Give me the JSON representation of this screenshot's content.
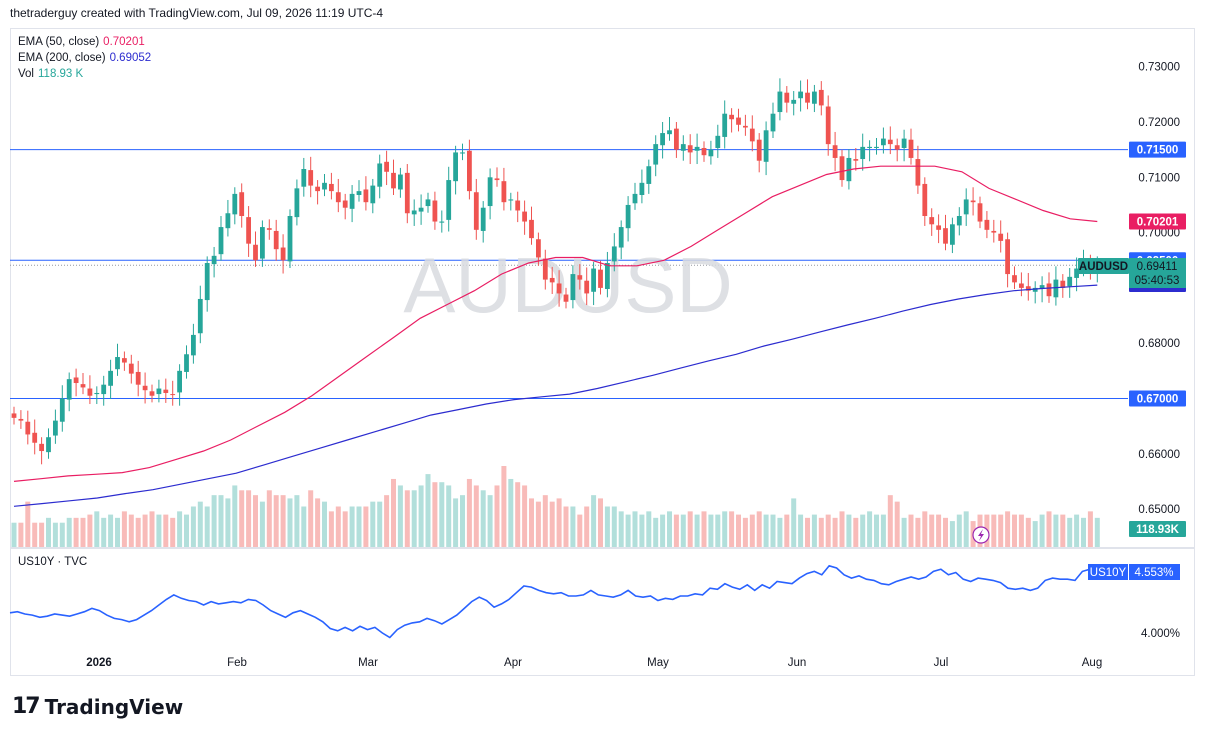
{
  "header": {
    "text": "thetraderguy created with TradingView.com, Jul 09, 2026 11:19 UTC-4"
  },
  "legend": [
    {
      "label": "EMA (50, close)",
      "value": "0.70201",
      "color": "#e91e63"
    },
    {
      "label": "EMA (200, close)",
      "value": "0.69052",
      "color": "#2c2ccf"
    },
    {
      "label": "Vol",
      "value": "118.93 K",
      "color": "#26a69a"
    }
  ],
  "watermark": "AUDUSD",
  "lower_pane": {
    "label": "US10Y · TVC",
    "badge_symbol": "US10Y",
    "badge_value": "4.553%",
    "tick": "4.000%",
    "color": "#2962ff"
  },
  "logo": {
    "mark": "17",
    "brand": "TradingView"
  },
  "colors": {
    "up": "#26a69a",
    "down": "#ef5350",
    "vol_up": "#b2dfdb",
    "vol_down": "#f8bbb9",
    "hline": "#2962ff"
  },
  "chart_data": [
    {
      "type": "candlestick",
      "symbol": "AUDUSD",
      "x_ticks": [
        "2026",
        "Feb",
        "Mar",
        "Apr",
        "May",
        "Jun",
        "Jul",
        "Aug"
      ],
      "y_ticks": [
        "0.73000",
        "0.72000",
        "0.71000",
        "0.70000",
        "0.68000",
        "0.66000",
        "0.65000"
      ],
      "ylim": [
        0.648,
        0.732
      ],
      "horizontal_lines": [
        {
          "value": 0.715,
          "label": "0.71500"
        },
        {
          "value": 0.695,
          "label": "0.69500"
        },
        {
          "value": 0.67,
          "label": "0.67000"
        }
      ],
      "price_labels": {
        "last": "AUDUSD",
        "price": "0.69411",
        "countdown": "05:40:53",
        "ema50": "0.70201",
        "ema200": "0.69052",
        "volume": "118.93K"
      },
      "closes": [
        0.6665,
        0.666,
        0.6635,
        0.662,
        0.6605,
        0.663,
        0.666,
        0.67,
        0.6735,
        0.6728,
        0.672,
        0.6705,
        0.671,
        0.6725,
        0.675,
        0.6775,
        0.6765,
        0.6745,
        0.6725,
        0.6715,
        0.6705,
        0.6718,
        0.671,
        0.6708,
        0.675,
        0.678,
        0.6815,
        0.688,
        0.6945,
        0.6958,
        0.701,
        0.7035,
        0.707,
        0.703,
        0.698,
        0.695,
        0.701,
        0.7005,
        0.697,
        0.695,
        0.703,
        0.708,
        0.7115,
        0.7085,
        0.7075,
        0.709,
        0.7075,
        0.7055,
        0.7045,
        0.707,
        0.7075,
        0.7055,
        0.7085,
        0.7125,
        0.711,
        0.708,
        0.7105,
        0.7035,
        0.704,
        0.7045,
        0.706,
        0.702,
        0.702,
        0.7095,
        0.7145,
        0.7145,
        0.7075,
        0.7005,
        0.7045,
        0.71,
        0.7095,
        0.7055,
        0.706,
        0.704,
        0.702,
        0.699,
        0.6955,
        0.6915,
        0.691,
        0.689,
        0.6875,
        0.6925,
        0.6915,
        0.689,
        0.6935,
        0.69,
        0.6945,
        0.6975,
        0.701,
        0.705,
        0.707,
        0.709,
        0.712,
        0.716,
        0.718,
        0.7185,
        0.715,
        0.716,
        0.7145,
        0.7155,
        0.714,
        0.715,
        0.7175,
        0.7215,
        0.7205,
        0.7195,
        0.719,
        0.7165,
        0.713,
        0.7185,
        0.7215,
        0.7255,
        0.7235,
        0.724,
        0.7255,
        0.7235,
        0.7255,
        0.723,
        0.716,
        0.7135,
        0.7095,
        0.7135,
        0.713,
        0.7155,
        0.7155,
        0.7155,
        0.717,
        0.716,
        0.715,
        0.717,
        0.7135,
        0.7085,
        0.703,
        0.7015,
        0.7005,
        0.698,
        0.7015,
        0.703,
        0.706,
        0.7055,
        0.702,
        0.7005,
        0.7,
        0.6985,
        0.6925,
        0.691,
        0.69,
        0.6895,
        0.69,
        0.6905,
        0.6885,
        0.6915,
        0.69,
        0.692,
        0.6935,
        0.6945,
        0.693,
        0.6941
      ],
      "ema50": [
        0.655,
        0.6555,
        0.656,
        0.6563,
        0.6566,
        0.6575,
        0.659,
        0.6605,
        0.6625,
        0.665,
        0.6675,
        0.6705,
        0.674,
        0.6775,
        0.681,
        0.6845,
        0.687,
        0.6895,
        0.6925,
        0.6945,
        0.6955,
        0.6955,
        0.694,
        0.694,
        0.695,
        0.6975,
        0.7005,
        0.7035,
        0.7065,
        0.7085,
        0.7105,
        0.7115,
        0.712,
        0.712,
        0.712,
        0.711,
        0.708,
        0.706,
        0.704,
        0.7025,
        0.702
      ],
      "ema200": [
        0.6505,
        0.651,
        0.6515,
        0.652,
        0.6528,
        0.6535,
        0.6545,
        0.6555,
        0.6565,
        0.658,
        0.6595,
        0.661,
        0.6625,
        0.664,
        0.6655,
        0.667,
        0.668,
        0.669,
        0.6698,
        0.6703,
        0.6708,
        0.6718,
        0.673,
        0.6742,
        0.6755,
        0.6768,
        0.678,
        0.6795,
        0.6807,
        0.682,
        0.6833,
        0.6845,
        0.6858,
        0.687,
        0.688,
        0.6888,
        0.6895,
        0.6899,
        0.6902,
        0.6905
      ],
      "volumes": [
        35,
        35,
        48,
        35,
        35,
        38,
        35,
        35,
        38,
        38,
        38,
        40,
        42,
        38,
        40,
        38,
        42,
        40,
        38,
        40,
        42,
        40,
        40,
        38,
        42,
        40,
        45,
        48,
        45,
        52,
        52,
        50,
        58,
        55,
        55,
        52,
        48,
        55,
        52,
        52,
        50,
        52,
        45,
        55,
        50,
        48,
        42,
        45,
        42,
        45,
        45,
        45,
        48,
        48,
        52,
        62,
        58,
        55,
        55,
        58,
        65,
        60,
        60,
        58,
        50,
        52,
        62,
        58,
        55,
        52,
        58,
        70,
        62,
        60,
        58,
        50,
        48,
        52,
        48,
        50,
        45,
        45,
        40,
        45,
        52,
        50,
        45,
        45,
        42,
        40,
        42,
        40,
        42,
        38,
        40,
        42,
        40,
        40,
        42,
        40,
        42,
        40,
        40,
        42,
        42,
        40,
        38,
        40,
        42,
        40,
        40,
        38,
        40,
        50,
        40,
        38,
        40,
        38,
        40,
        38,
        42,
        40,
        38,
        40,
        42,
        40,
        40,
        52,
        48,
        38,
        40,
        38,
        42,
        40,
        40,
        38,
        36,
        40,
        42,
        36,
        40,
        40,
        40,
        40,
        42,
        40,
        40,
        38,
        36,
        40,
        42,
        40,
        40,
        38,
        40,
        38,
        42,
        38,
        40
      ]
    },
    {
      "type": "line",
      "symbol": "US10Y",
      "ylim": [
        3.85,
        4.72
      ],
      "y_tick": 4.0,
      "values": [
        4.18,
        4.19,
        4.17,
        4.16,
        4.14,
        4.15,
        4.17,
        4.16,
        4.15,
        4.17,
        4.19,
        4.22,
        4.2,
        4.16,
        4.13,
        4.12,
        4.1,
        4.12,
        4.16,
        4.2,
        4.25,
        4.3,
        4.34,
        4.31,
        4.29,
        4.28,
        4.25,
        4.28,
        4.26,
        4.27,
        4.28,
        4.27,
        4.3,
        4.29,
        4.25,
        4.2,
        4.17,
        4.14,
        4.18,
        4.2,
        4.17,
        4.14,
        4.1,
        4.04,
        4.02,
        4.05,
        4.02,
        4.06,
        4.03,
        4.05,
        4.0,
        3.96,
        4.03,
        4.07,
        4.09,
        4.1,
        4.13,
        4.11,
        4.08,
        4.12,
        4.16,
        4.22,
        4.28,
        4.32,
        4.29,
        4.23,
        4.26,
        4.3,
        4.36,
        4.42,
        4.41,
        4.38,
        4.36,
        4.35,
        4.36,
        4.33,
        4.33,
        4.34,
        4.38,
        4.34,
        4.33,
        4.32,
        4.34,
        4.38,
        4.33,
        4.32,
        4.33,
        4.29,
        4.31,
        4.3,
        4.33,
        4.33,
        4.35,
        4.34,
        4.4,
        4.39,
        4.44,
        4.41,
        4.39,
        4.43,
        4.38,
        4.43,
        4.4,
        4.46,
        4.45,
        4.44,
        4.49,
        4.53,
        4.55,
        4.52,
        4.6,
        4.58,
        4.52,
        4.49,
        4.51,
        4.48,
        4.47,
        4.44,
        4.43,
        4.46,
        4.48,
        4.5,
        4.48,
        4.5,
        4.55,
        4.57,
        4.52,
        4.54,
        4.48,
        4.46,
        4.49,
        4.48,
        4.47,
        4.45,
        4.4,
        4.39,
        4.4,
        4.38,
        4.4,
        4.47,
        4.49,
        4.48,
        4.48,
        4.47,
        4.55,
        4.57,
        4.55
      ]
    }
  ]
}
